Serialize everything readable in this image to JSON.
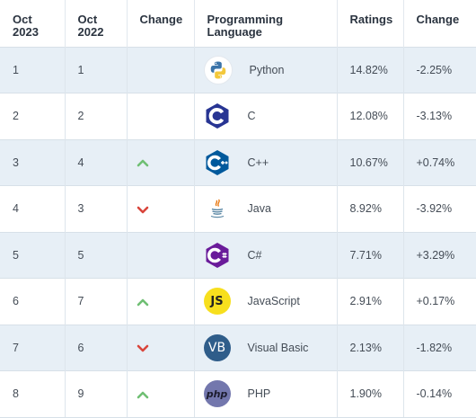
{
  "headers": {
    "oct2023": [
      "Oct",
      "2023"
    ],
    "oct2022": [
      "Oct",
      "2022"
    ],
    "change": "Change",
    "language": [
      "Programming",
      "Language"
    ],
    "ratings": "Ratings",
    "ratings_change": "Change"
  },
  "colors": {
    "up": "#6fbf73",
    "down": "#d9453b",
    "row_alt": "#e7eff6"
  },
  "rows": [
    {
      "rank2023": "1",
      "rank2022": "1",
      "trend": "none",
      "icon": "python-icon",
      "language": "Python",
      "rating": "14.82%",
      "change": "-2.25%"
    },
    {
      "rank2023": "2",
      "rank2022": "2",
      "trend": "none",
      "icon": "c-icon",
      "language": "C",
      "rating": "12.08%",
      "change": "-3.13%"
    },
    {
      "rank2023": "3",
      "rank2022": "4",
      "trend": "up",
      "icon": "cpp-icon",
      "language": "C++",
      "rating": "10.67%",
      "change": "+0.74%"
    },
    {
      "rank2023": "4",
      "rank2022": "3",
      "trend": "down",
      "icon": "java-icon",
      "language": "Java",
      "rating": "8.92%",
      "change": "-3.92%"
    },
    {
      "rank2023": "5",
      "rank2022": "5",
      "trend": "none",
      "icon": "csharp-icon",
      "language": "C#",
      "rating": "7.71%",
      "change": "+3.29%"
    },
    {
      "rank2023": "6",
      "rank2022": "7",
      "trend": "up",
      "icon": "javascript-icon",
      "language": "JavaScript",
      "rating": "2.91%",
      "change": "+0.17%"
    },
    {
      "rank2023": "7",
      "rank2022": "6",
      "trend": "down",
      "icon": "visual-basic-icon",
      "language": "Visual Basic",
      "rating": "2.13%",
      "change": "-1.82%"
    },
    {
      "rank2023": "8",
      "rank2022": "9",
      "trend": "up",
      "icon": "php-icon",
      "language": "PHP",
      "rating": "1.90%",
      "change": "-0.14%"
    }
  ],
  "logo_text": {
    "javascript": "JS",
    "visual_basic": "VB",
    "php": "php"
  }
}
